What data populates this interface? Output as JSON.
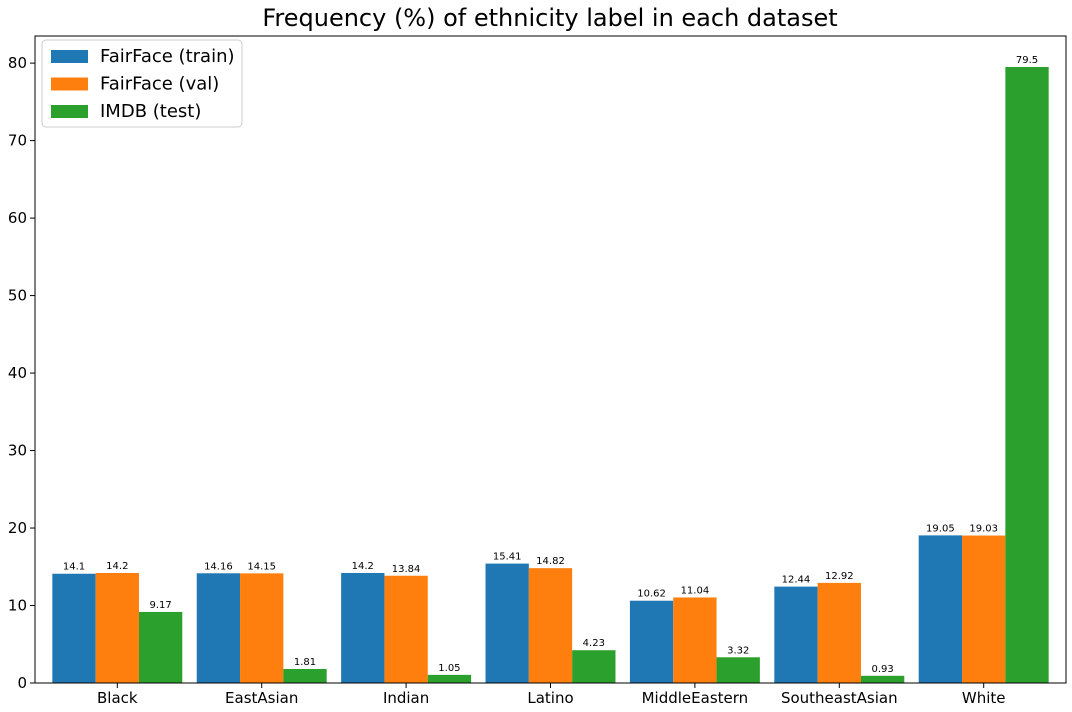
{
  "chart_data": {
    "type": "bar",
    "title": "Frequency (%) of ethnicity label in each dataset",
    "xlabel": "",
    "ylabel": "",
    "categories": [
      "Black",
      "EastAsian",
      "Indian",
      "Latino",
      "MiddleEastern",
      "SoutheastAsian",
      "White"
    ],
    "series": [
      {
        "name": "FairFace (train)",
        "color": "#1f77b4",
        "values": [
          14.1,
          14.16,
          14.2,
          15.41,
          10.62,
          12.44,
          19.05
        ]
      },
      {
        "name": "FairFace (val)",
        "color": "#ff7f0e",
        "values": [
          14.2,
          14.15,
          13.84,
          14.82,
          11.04,
          12.92,
          19.03
        ]
      },
      {
        "name": "IMDB (test)",
        "color": "#2ca02c",
        "values": [
          9.17,
          1.81,
          1.05,
          4.23,
          3.32,
          0.93,
          79.5
        ]
      }
    ],
    "ylim": [
      0,
      83.5
    ],
    "yticks": [
      0,
      10,
      20,
      30,
      40,
      50,
      60,
      70,
      80
    ],
    "grid": false,
    "legend_position": "top-left"
  }
}
